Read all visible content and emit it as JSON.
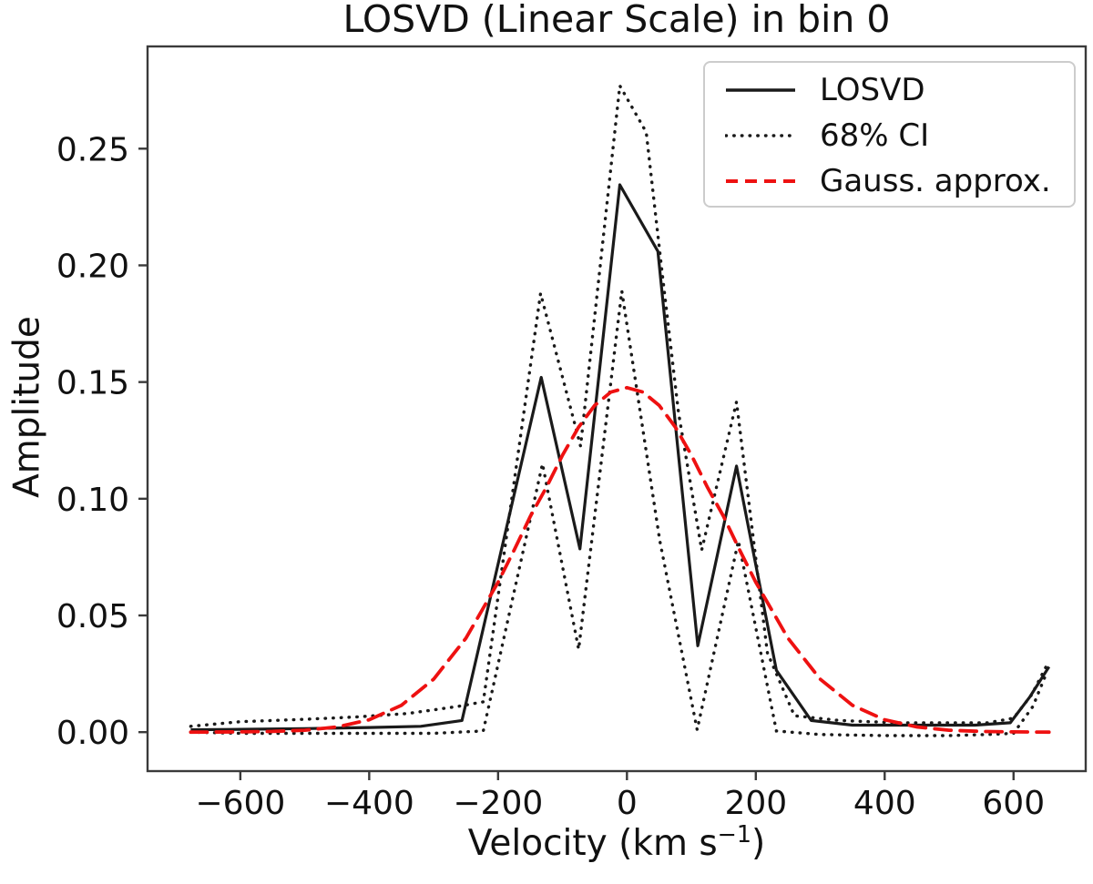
{
  "accent_colors": {
    "line_black": "#1a1a1a",
    "gauss_red": "#ee1111",
    "spine_gray": "#3a3a3a"
  },
  "chart_data": {
    "type": "line",
    "title": "LOSVD (Linear Scale) in bin 0",
    "ylabel": "Amplitude",
    "xlabel_parts": {
      "prefix": "Velocity (km s",
      "sup": "−1",
      "suffix": ")"
    },
    "grid": false,
    "legend_position": "upper right",
    "xlim": [
      -744,
      712
    ],
    "ylim": [
      -0.0167,
      0.2938
    ],
    "x_ticks": [
      {
        "value": -600,
        "label": "−600"
      },
      {
        "value": -400,
        "label": "−400"
      },
      {
        "value": -200,
        "label": "−200"
      },
      {
        "value": 0,
        "label": "0"
      },
      {
        "value": 200,
        "label": "200"
      },
      {
        "value": 400,
        "label": "400"
      },
      {
        "value": 600,
        "label": "600"
      }
    ],
    "y_ticks": [
      {
        "value": 0.0,
        "label": "0.00"
      },
      {
        "value": 0.05,
        "label": "0.05"
      },
      {
        "value": 0.1,
        "label": "0.10"
      },
      {
        "value": 0.15,
        "label": "0.15"
      },
      {
        "value": 0.2,
        "label": "0.20"
      },
      {
        "value": 0.25,
        "label": "0.25"
      }
    ],
    "legend": {
      "entries": [
        {
          "label": "LOSVD",
          "style": "solid",
          "color": "#1a1a1a"
        },
        {
          "label": "68% CI",
          "style": "dotted",
          "color": "#1a1a1a"
        },
        {
          "label": "Gauss. approx.",
          "style": "dashed",
          "color": "#ee1111"
        }
      ]
    },
    "series": [
      {
        "name": "LOSVD",
        "style": "solid",
        "color": "#1a1a1a",
        "width": 3.2,
        "points": [
          [
            -677,
            0.001
          ],
          [
            -600,
            0.0012
          ],
          [
            -500,
            0.0015
          ],
          [
            -400,
            0.002
          ],
          [
            -320,
            0.0025
          ],
          [
            -256,
            0.005
          ],
          [
            -133,
            0.152
          ],
          [
            -73,
            0.0785
          ],
          [
            -11,
            0.2345
          ],
          [
            48,
            0.206
          ],
          [
            110,
            0.037
          ],
          [
            170,
            0.114
          ],
          [
            232,
            0.0265
          ],
          [
            286,
            0.005
          ],
          [
            350,
            0.003
          ],
          [
            420,
            0.003
          ],
          [
            480,
            0.003
          ],
          [
            540,
            0.003
          ],
          [
            595,
            0.004
          ],
          [
            625,
            0.015
          ],
          [
            655,
            0.028
          ]
        ]
      },
      {
        "name": "68% CI upper",
        "style": "dotted",
        "color": "#1a1a1a",
        "width": 3.4,
        "points": [
          [
            -677,
            0.0025
          ],
          [
            -600,
            0.0045
          ],
          [
            -500,
            0.0055
          ],
          [
            -420,
            0.0065
          ],
          [
            -340,
            0.008
          ],
          [
            -263,
            0.011
          ],
          [
            -223,
            0.013
          ],
          [
            -134,
            0.188
          ],
          [
            -72,
            0.1225
          ],
          [
            -11,
            0.277
          ],
          [
            30,
            0.257
          ],
          [
            55,
            0.196
          ],
          [
            80,
            0.137
          ],
          [
            116,
            0.078
          ],
          [
            170,
            0.1415
          ],
          [
            218,
            0.034
          ],
          [
            260,
            0.007
          ],
          [
            330,
            0.005
          ],
          [
            420,
            0.004
          ],
          [
            500,
            0.004
          ],
          [
            560,
            0.004
          ],
          [
            600,
            0.006
          ],
          [
            628,
            0.016
          ],
          [
            655,
            0.0305
          ]
        ]
      },
      {
        "name": "68% CI lower",
        "style": "dotted",
        "color": "#1a1a1a",
        "width": 3.4,
        "points": [
          [
            -677,
            0.0
          ],
          [
            -600,
            -0.0005
          ],
          [
            -500,
            -0.0005
          ],
          [
            -400,
            -0.0005
          ],
          [
            -300,
            -0.0005
          ],
          [
            -223,
            0.0005
          ],
          [
            -131,
            0.115
          ],
          [
            -75,
            0.0355
          ],
          [
            -8,
            0.189
          ],
          [
            51,
            0.082
          ],
          [
            109,
            0.001
          ],
          [
            173,
            0.082
          ],
          [
            232,
            0.0005
          ],
          [
            300,
            -0.001
          ],
          [
            400,
            -0.0015
          ],
          [
            500,
            -0.0015
          ],
          [
            560,
            -0.001
          ],
          [
            600,
            -0.0005
          ],
          [
            630,
            0.011
          ],
          [
            650,
            0.0245
          ]
        ]
      },
      {
        "name": "Gauss. approx.",
        "style": "dashed",
        "color": "#ee1111",
        "width": 3.8,
        "points": [
          [
            -677,
            0.0
          ],
          [
            -600,
            0.0001
          ],
          [
            -550,
            0.0003
          ],
          [
            -500,
            0.0008
          ],
          [
            -450,
            0.0022
          ],
          [
            -400,
            0.0053
          ],
          [
            -350,
            0.0115
          ],
          [
            -300,
            0.0227
          ],
          [
            -250,
            0.0402
          ],
          [
            -200,
            0.0642
          ],
          [
            -175,
            0.078
          ],
          [
            -150,
            0.0924
          ],
          [
            -125,
            0.1049
          ],
          [
            -100,
            0.1187
          ],
          [
            -75,
            0.1307
          ],
          [
            -50,
            0.14
          ],
          [
            -25,
            0.1457
          ],
          [
            0,
            0.1476
          ],
          [
            25,
            0.1457
          ],
          [
            50,
            0.14
          ],
          [
            75,
            0.1307
          ],
          [
            100,
            0.1187
          ],
          [
            125,
            0.1049
          ],
          [
            150,
            0.0924
          ],
          [
            175,
            0.078
          ],
          [
            200,
            0.0642
          ],
          [
            250,
            0.0402
          ],
          [
            300,
            0.0227
          ],
          [
            350,
            0.0115
          ],
          [
            400,
            0.0053
          ],
          [
            450,
            0.0022
          ],
          [
            500,
            0.0008
          ],
          [
            550,
            0.0003
          ],
          [
            600,
            0.0001
          ],
          [
            655,
            0.0
          ]
        ]
      }
    ]
  }
}
